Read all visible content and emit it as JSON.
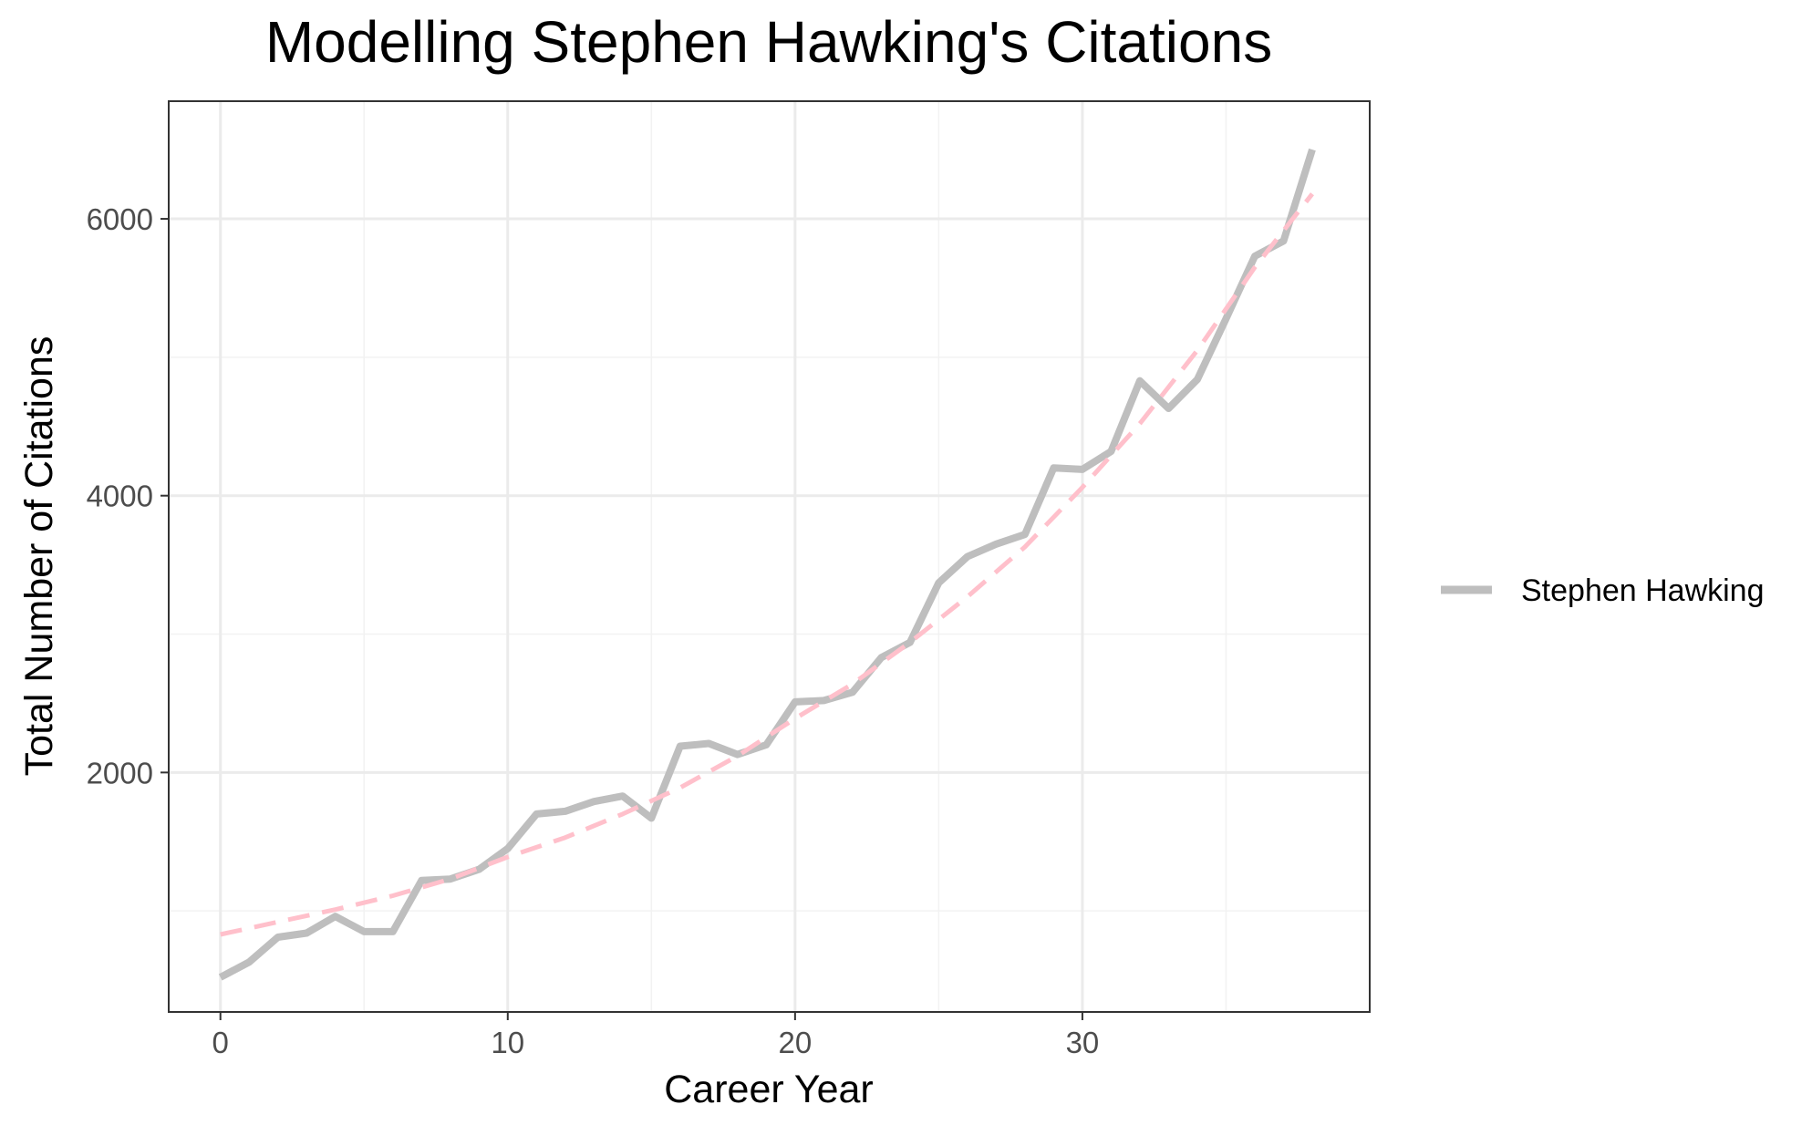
{
  "chart_data": {
    "type": "line",
    "title": "Modelling Stephen Hawking's Citations",
    "xlabel": "Career Year",
    "ylabel": "Total Number of Citations",
    "xlim": [
      -1.8,
      40
    ],
    "ylim": [
      270,
      6850
    ],
    "x_ticks": [
      0,
      10,
      20,
      30
    ],
    "x_tick_labels": [
      "0",
      "10",
      "20",
      "30"
    ],
    "x_minor_ticks": [
      5,
      15,
      25,
      35
    ],
    "y_ticks": [
      2000,
      4000,
      6000
    ],
    "y_tick_labels": [
      "2000",
      "4000",
      "6000"
    ],
    "y_minor_ticks": [
      1000,
      3000,
      5000
    ],
    "grid": true,
    "legend_position": "right",
    "series": [
      {
        "name": "Stephen Hawking",
        "color": "#bebebe",
        "style": "solid",
        "x": [
          0,
          1,
          2,
          3,
          4,
          5,
          6,
          7,
          8,
          9,
          10,
          11,
          12,
          13,
          14,
          15,
          16,
          17,
          18,
          19,
          20,
          21,
          22,
          23,
          24,
          25,
          26,
          27,
          28,
          29,
          30,
          31,
          32,
          33,
          34,
          35,
          36,
          37,
          38
        ],
        "y": [
          520,
          630,
          810,
          840,
          960,
          850,
          850,
          1220,
          1230,
          1300,
          1450,
          1700,
          1720,
          1790,
          1830,
          1670,
          2190,
          2210,
          2130,
          2200,
          2510,
          2520,
          2580,
          2830,
          2940,
          3370,
          3560,
          3650,
          3720,
          4200,
          4190,
          4320,
          4830,
          4630,
          4840,
          5280,
          5730,
          5840,
          6500
        ]
      },
      {
        "color": "#ffc0cb",
        "style": "dashed",
        "x": [
          0,
          2,
          4,
          6,
          8,
          10,
          12,
          14,
          16,
          18,
          20,
          22,
          24,
          26,
          28,
          30,
          32,
          34,
          36,
          38
        ],
        "y": [
          830,
          920,
          1010,
          1110,
          1230,
          1390,
          1530,
          1700,
          1890,
          2120,
          2390,
          2640,
          2940,
          3270,
          3630,
          4060,
          4520,
          5050,
          5650,
          6180
        ]
      }
    ]
  }
}
